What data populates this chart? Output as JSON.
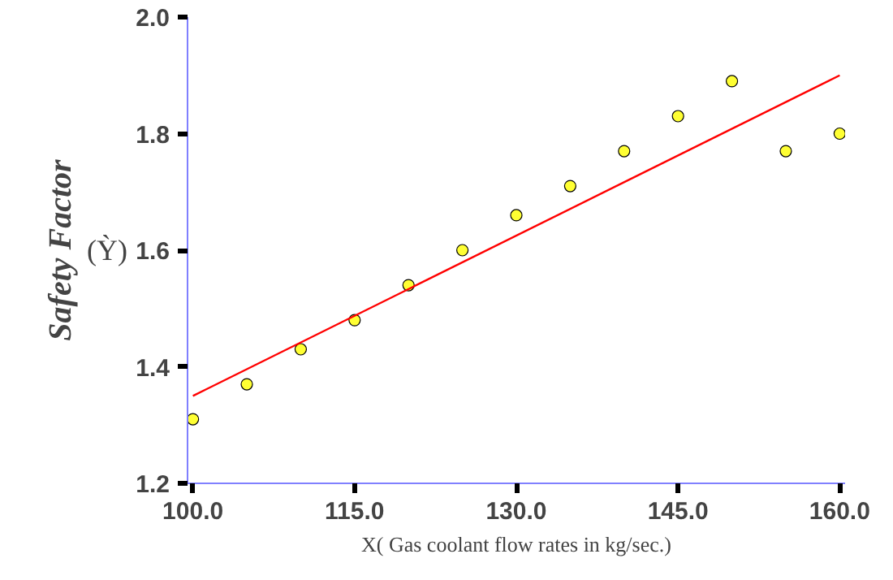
{
  "chart_data": {
    "type": "scatter",
    "xlabel": "X( Gas coolant flow rates in kg/sec.)",
    "ylabel": "Safety Factor",
    "annotations": [
      "(Ỳ)"
    ],
    "x": [
      100,
      105,
      110,
      115,
      120,
      125,
      130,
      135,
      140,
      145,
      150,
      155,
      160
    ],
    "series": [
      {
        "color": "#ffff33",
        "marker": "circle",
        "values": [
          1.31,
          1.37,
          1.43,
          1.48,
          1.54,
          1.6,
          1.66,
          1.71,
          1.77,
          1.83,
          1.89,
          1.77,
          1.8
        ]
      },
      {
        "type": "line",
        "color": "#ff0000",
        "marker": "none",
        "x": [
          100,
          160
        ],
        "values": [
          1.35,
          1.9
        ]
      }
    ],
    "xlim": [
      99.5,
      160.5
    ],
    "ylim": [
      1.2,
      2.0
    ],
    "xticks": [
      {
        "value": 100,
        "label": "100.0"
      },
      {
        "value": 115,
        "label": "115.0"
      },
      {
        "value": 130,
        "label": "130.0"
      },
      {
        "value": 145,
        "label": "145.0"
      },
      {
        "value": 160,
        "label": "160.0"
      }
    ],
    "yticks": [
      {
        "value": 1.2,
        "label": "1.2"
      },
      {
        "value": 1.4,
        "label": "1.4"
      },
      {
        "value": 1.6,
        "label": "1.6"
      },
      {
        "value": 1.8,
        "label": "1.8"
      },
      {
        "value": 2.0,
        "label": "2.0"
      }
    ],
    "grid": false
  }
}
